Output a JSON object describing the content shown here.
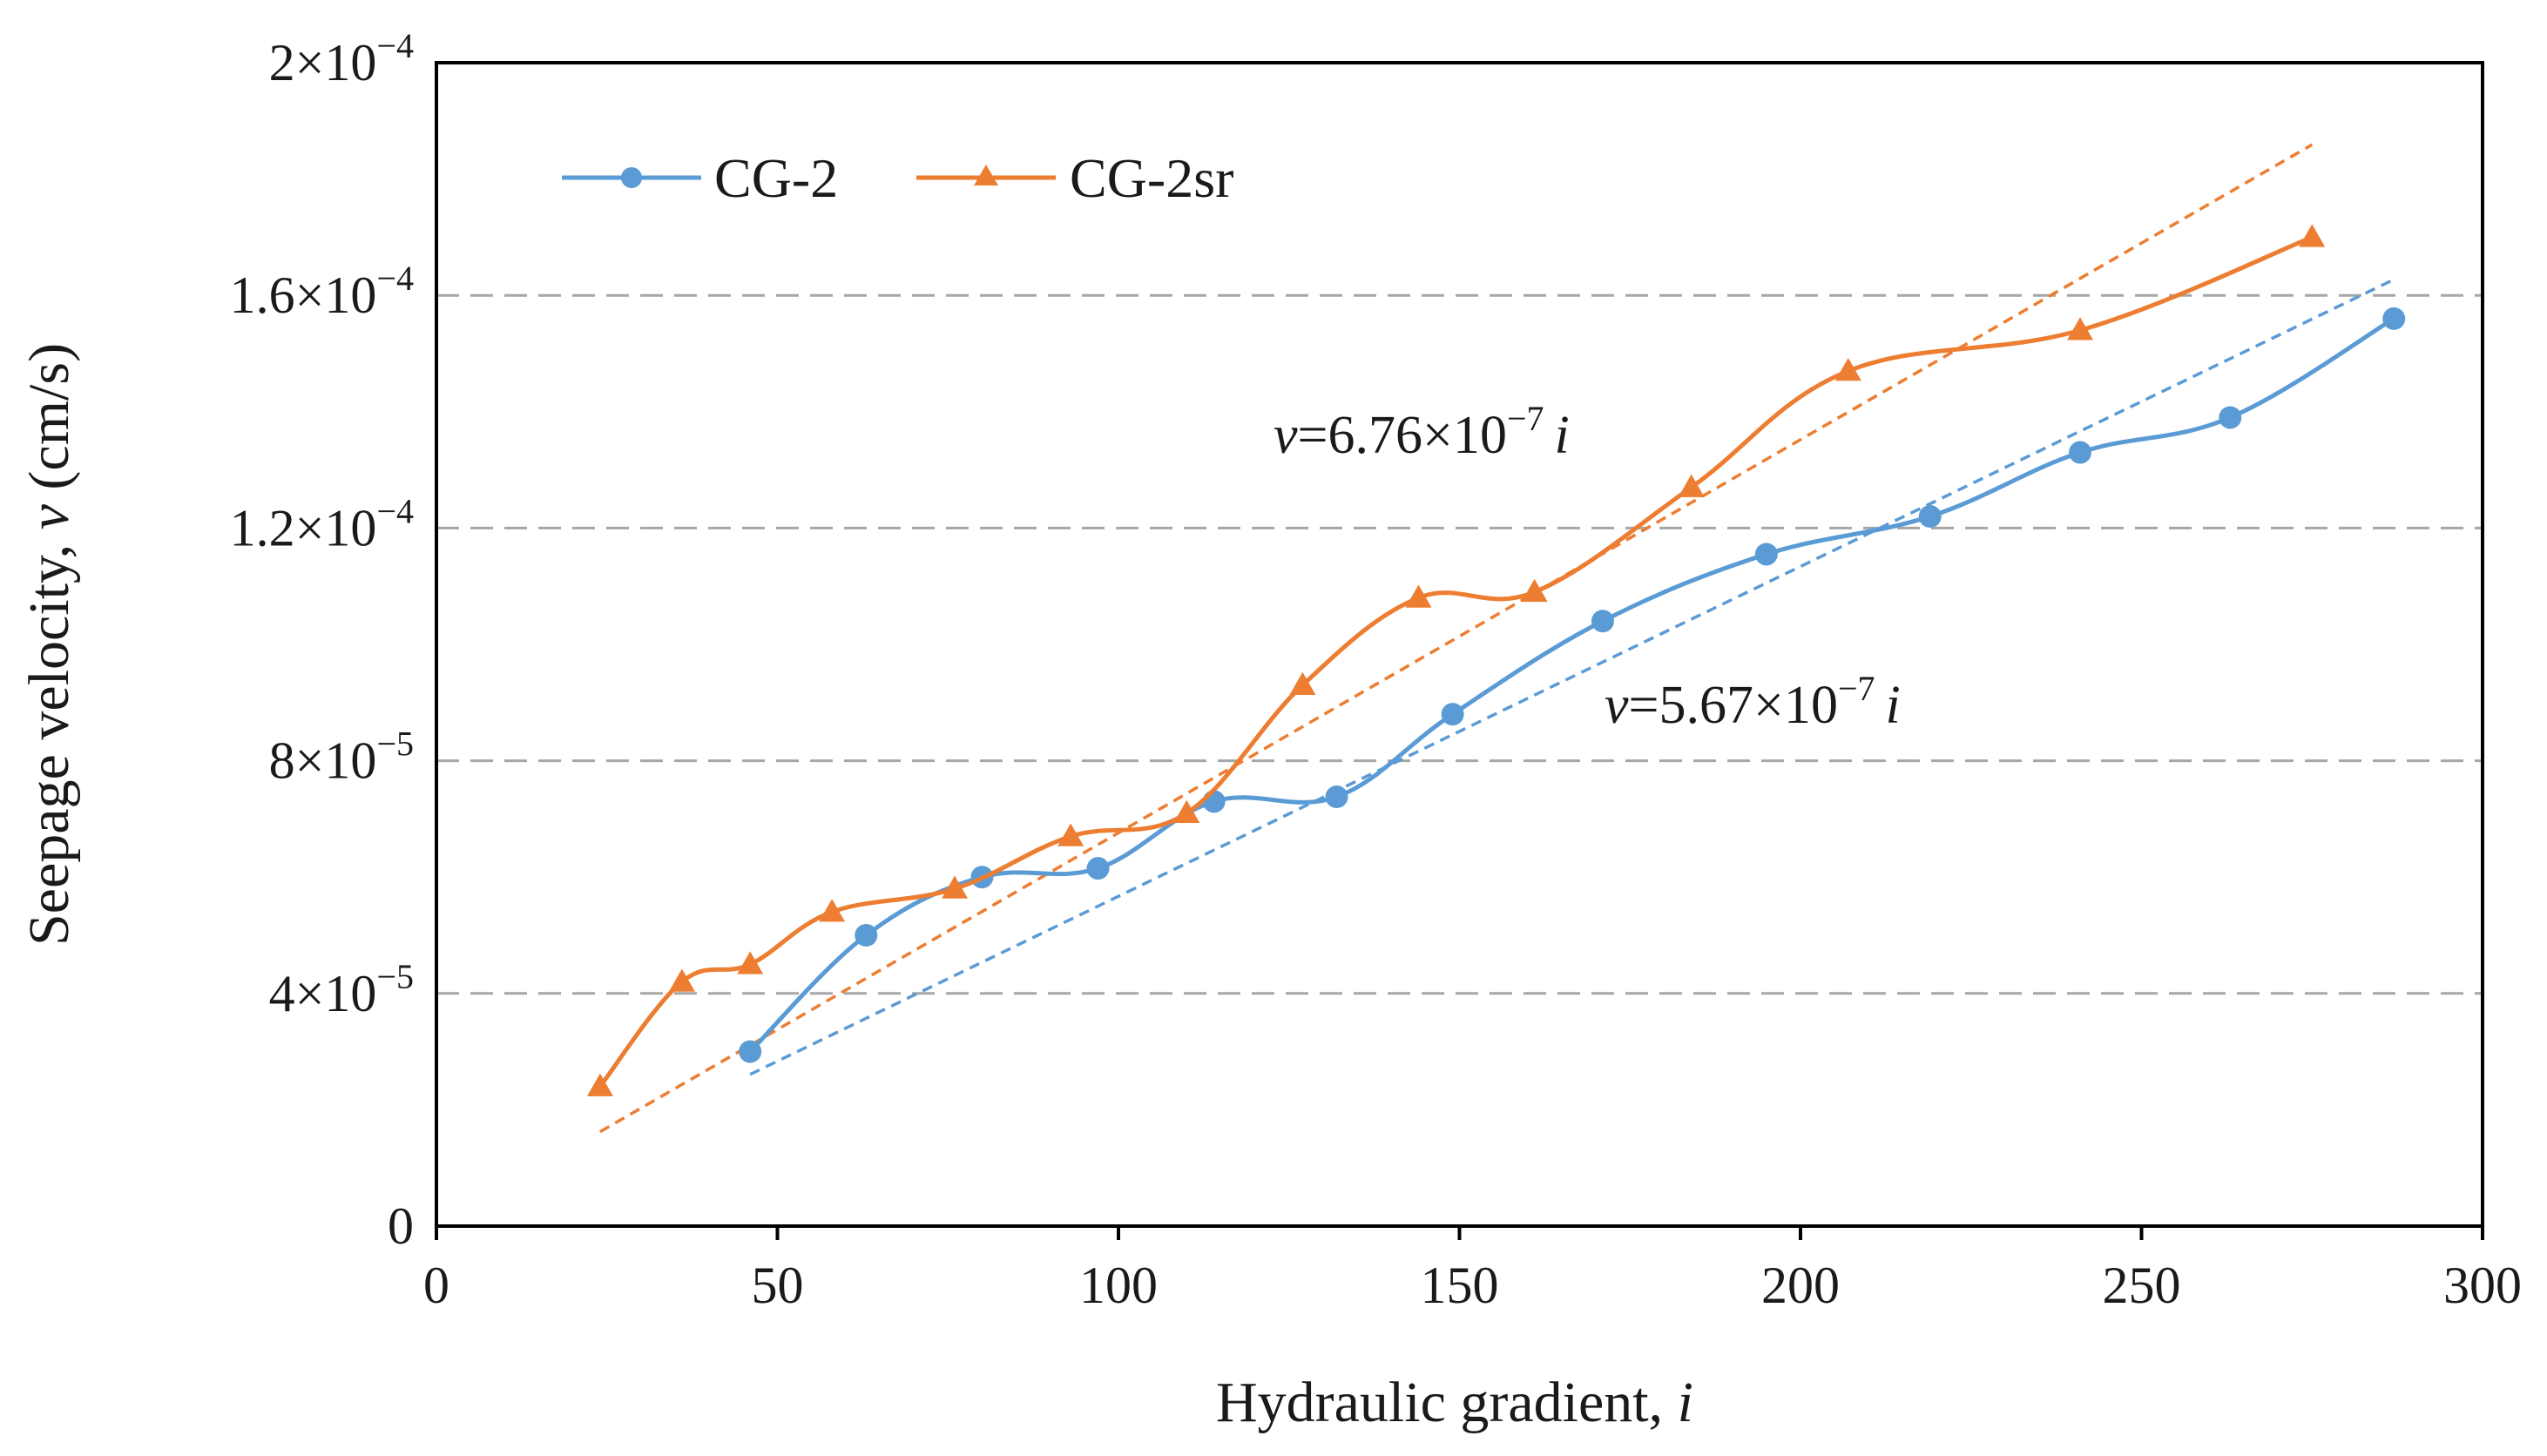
{
  "chart_data": {
    "type": "line",
    "xlabel": "Hydraulic gradient,",
    "xlabel_var": "i",
    "ylabel": "Seepage velocity,",
    "ylabel_var": "v",
    "ylabel_unit": "(cm/s)",
    "xlim": [
      0,
      300
    ],
    "ylim": [
      0,
      0.0002
    ],
    "x_ticks": [
      0,
      50,
      100,
      150,
      200,
      250,
      300
    ],
    "x_tick_labels": [
      "0",
      "50",
      "100",
      "150",
      "200",
      "250",
      "300"
    ],
    "y_ticks": [
      {
        "value": 0,
        "mantissa": "0",
        "exponent": ""
      },
      {
        "value": 4e-05,
        "mantissa": "4×10",
        "exponent": "−5"
      },
      {
        "value": 8e-05,
        "mantissa": "8×10",
        "exponent": "−5"
      },
      {
        "value": 0.00012,
        "mantissa": "1.2×10",
        "exponent": "−4"
      },
      {
        "value": 0.00016,
        "mantissa": "1.6×10",
        "exponent": "−4"
      },
      {
        "value": 0.0002,
        "mantissa": "2×10",
        "exponent": "−4"
      }
    ],
    "grid": "horizontal-dashed",
    "legend_position": "top-left",
    "series": [
      {
        "name": "CG-2",
        "marker": "circle",
        "color": "#5B9BD5",
        "x": [
          46,
          63,
          80,
          97,
          114,
          132,
          149,
          171,
          195,
          219,
          241,
          263,
          287
        ],
        "y": [
          3e-05,
          5e-05,
          6e-05,
          6.15e-05,
          7.3e-05,
          7.38e-05,
          8.8e-05,
          0.000104,
          0.0001155,
          0.000122,
          0.000133,
          0.000139,
          0.000156
        ]
      },
      {
        "name": "CG-2sr",
        "marker": "triangle",
        "color": "#ED7D31",
        "x": [
          24,
          36,
          46,
          58,
          76,
          93,
          110,
          127,
          144,
          161,
          184,
          207,
          241,
          275
        ],
        "y": [
          2.4e-05,
          4.2e-05,
          4.5e-05,
          5.4e-05,
          5.8e-05,
          6.7e-05,
          7.1e-05,
          9.3e-05,
          0.000108,
          0.000109,
          0.000127,
          0.000147,
          0.000154,
          0.00017
        ]
      }
    ],
    "trendlines": [
      {
        "series": "CG-2sr",
        "slope": 6.76e-07,
        "x_range": [
          24,
          275
        ],
        "color": "#ED7D31",
        "style": "dashed",
        "label_var": "v",
        "label_eq": "=6.76×10",
        "label_exp": "−7",
        "label_tail": "i"
      },
      {
        "series": "CG-2",
        "slope": 5.67e-07,
        "x_range": [
          46,
          287
        ],
        "color": "#5B9BD5",
        "style": "dashed",
        "label_var": "v",
        "label_eq": "=5.67×10",
        "label_exp": "−7",
        "label_tail": "i"
      }
    ]
  }
}
